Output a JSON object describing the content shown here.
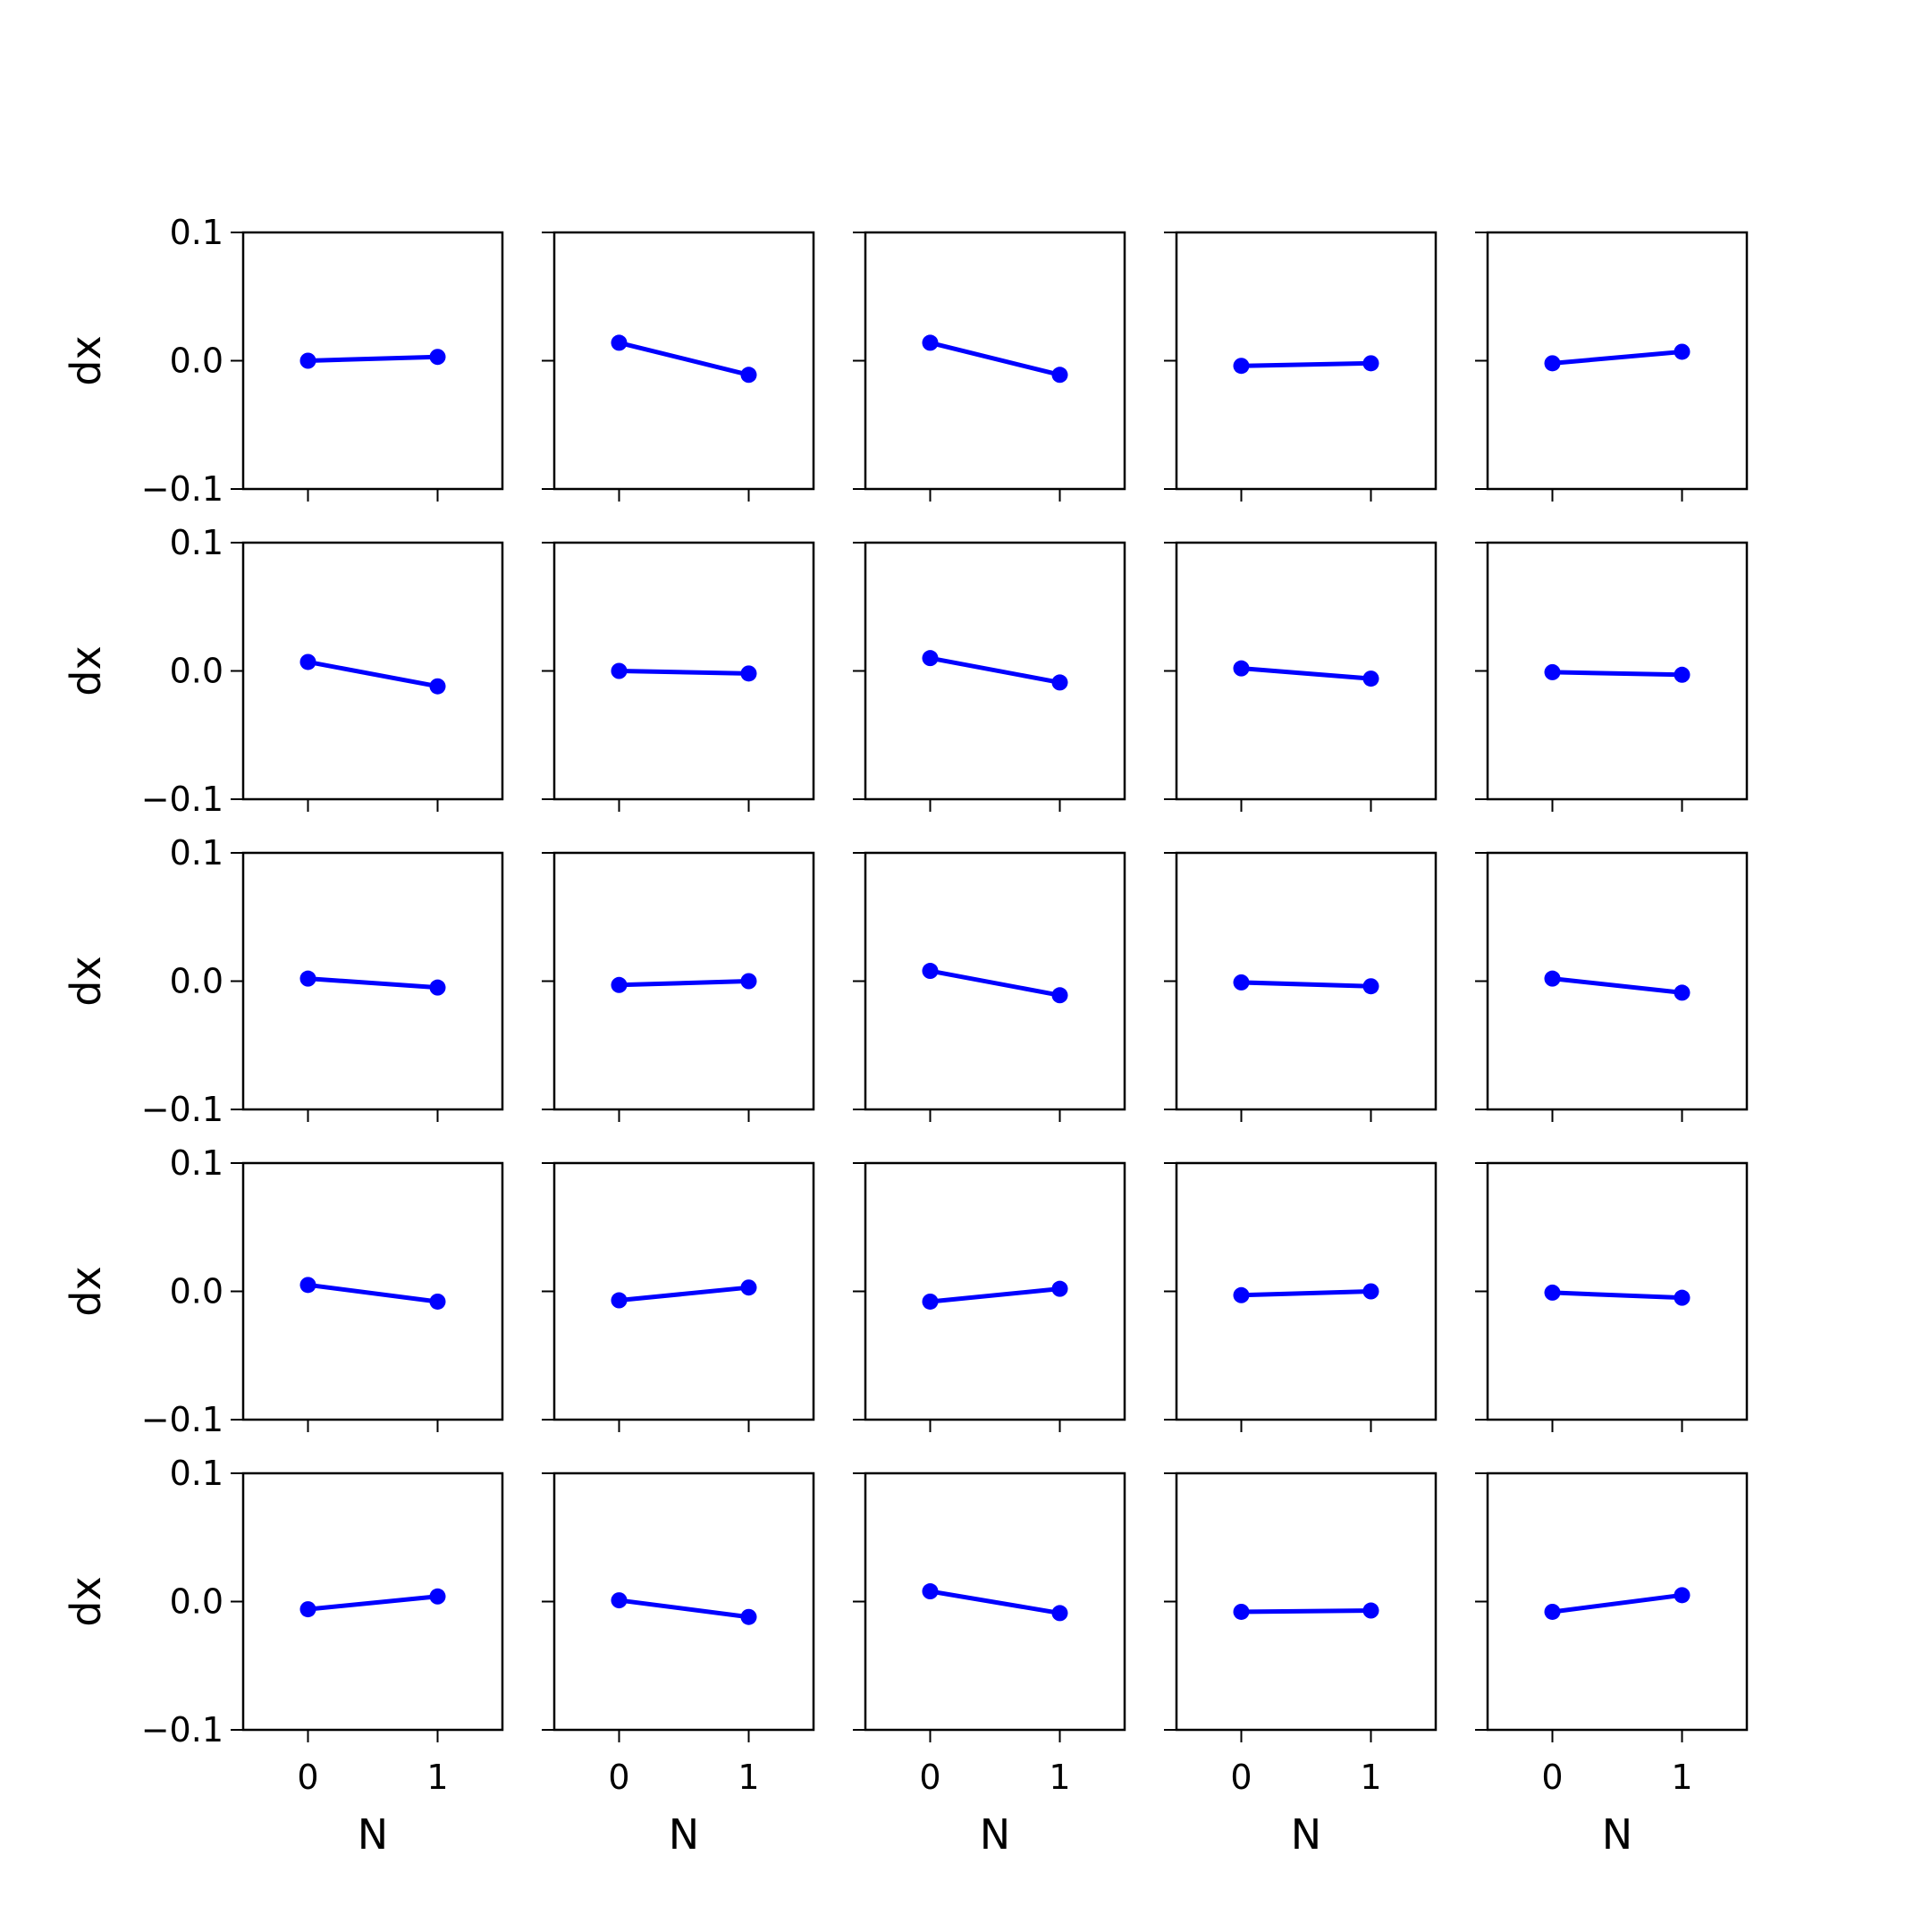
{
  "chart_data": {
    "type": "line",
    "layout": {
      "rows": 5,
      "cols": 5
    },
    "x": [
      0,
      1
    ],
    "xticks": [
      0,
      1
    ],
    "xtick_labels": [
      "0",
      "1"
    ],
    "xlim": [
      -0.5,
      1.5
    ],
    "yticks": [
      -0.1,
      0.0,
      0.1
    ],
    "ytick_labels": [
      "−0.1",
      "0.0",
      "0.1"
    ],
    "ylim": [
      -0.1,
      0.1
    ],
    "xlabel": "N",
    "ylabel": "dx",
    "grid": false,
    "colors": {
      "series": "#0000ff",
      "axes": "#000000",
      "background": "#ffffff"
    },
    "panels": [
      {
        "row": 0,
        "col": 0,
        "y": [
          0.0,
          0.003
        ]
      },
      {
        "row": 0,
        "col": 1,
        "y": [
          0.014,
          -0.011
        ]
      },
      {
        "row": 0,
        "col": 2,
        "y": [
          0.014,
          -0.011
        ]
      },
      {
        "row": 0,
        "col": 3,
        "y": [
          -0.004,
          -0.002
        ]
      },
      {
        "row": 0,
        "col": 4,
        "y": [
          -0.002,
          0.007
        ]
      },
      {
        "row": 1,
        "col": 0,
        "y": [
          0.007,
          -0.012
        ]
      },
      {
        "row": 1,
        "col": 1,
        "y": [
          0.0,
          -0.002
        ]
      },
      {
        "row": 1,
        "col": 2,
        "y": [
          0.01,
          -0.009
        ]
      },
      {
        "row": 1,
        "col": 3,
        "y": [
          0.002,
          -0.006
        ]
      },
      {
        "row": 1,
        "col": 4,
        "y": [
          -0.001,
          -0.003
        ]
      },
      {
        "row": 2,
        "col": 0,
        "y": [
          0.002,
          -0.005
        ]
      },
      {
        "row": 2,
        "col": 1,
        "y": [
          -0.003,
          0.0
        ]
      },
      {
        "row": 2,
        "col": 2,
        "y": [
          0.008,
          -0.011
        ]
      },
      {
        "row": 2,
        "col": 3,
        "y": [
          -0.001,
          -0.004
        ]
      },
      {
        "row": 2,
        "col": 4,
        "y": [
          0.002,
          -0.009
        ]
      },
      {
        "row": 3,
        "col": 0,
        "y": [
          0.005,
          -0.008
        ]
      },
      {
        "row": 3,
        "col": 1,
        "y": [
          -0.007,
          0.003
        ]
      },
      {
        "row": 3,
        "col": 2,
        "y": [
          -0.008,
          0.002
        ]
      },
      {
        "row": 3,
        "col": 3,
        "y": [
          -0.003,
          0.0
        ]
      },
      {
        "row": 3,
        "col": 4,
        "y": [
          -0.001,
          -0.005
        ]
      },
      {
        "row": 4,
        "col": 0,
        "y": [
          -0.006,
          0.004
        ]
      },
      {
        "row": 4,
        "col": 1,
        "y": [
          0.001,
          -0.012
        ]
      },
      {
        "row": 4,
        "col": 2,
        "y": [
          0.008,
          -0.009
        ]
      },
      {
        "row": 4,
        "col": 3,
        "y": [
          -0.008,
          -0.007
        ]
      },
      {
        "row": 4,
        "col": 4,
        "y": [
          -0.008,
          0.005
        ]
      }
    ]
  }
}
